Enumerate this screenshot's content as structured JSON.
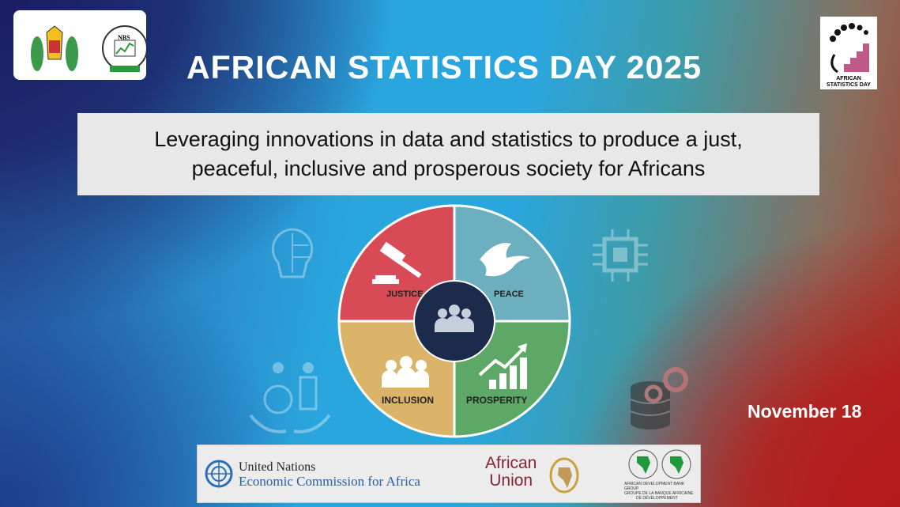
{
  "header": {
    "title": "AFRICAN STATISTICS DAY 2025",
    "left_logos": [
      "Coat of arms of Tanzania",
      "NBS Tanzania - Statistics for Development"
    ],
    "right_logo": {
      "text": "AFRICAN STATISTICS DAY"
    }
  },
  "theme": {
    "line1": "Leveraging innovations in data and statistics to produce a just,",
    "line2": "peaceful, inclusive and prosperous society for Africans"
  },
  "wheel": {
    "quadrants": [
      {
        "label": "JUSTICE",
        "icon": "gavel-icon",
        "color": "#d94a57"
      },
      {
        "label": "PEACE",
        "icon": "dove-icon",
        "color": "#6cafbf"
      },
      {
        "label": "INCLUSION",
        "icon": "people-icon",
        "color": "#dbb46a"
      },
      {
        "label": "PROSPERITY",
        "icon": "growth-chart-icon",
        "color": "#5da866"
      }
    ],
    "center": {
      "icon": "group-icon",
      "color": "#1c2b4b"
    }
  },
  "date": "November 18",
  "partners": {
    "uneca": {
      "line1": "United Nations",
      "line2": "Economic Commission for Africa"
    },
    "au": {
      "line1": "African",
      "line2": "Union"
    },
    "afdb": {
      "line1": "AFRICAN DEVELOPMENT BANK GROUP",
      "line2": "GROUPE DE LA BANQUE AFRICAINE",
      "line3": "DE DÉVELOPPEMENT"
    }
  }
}
